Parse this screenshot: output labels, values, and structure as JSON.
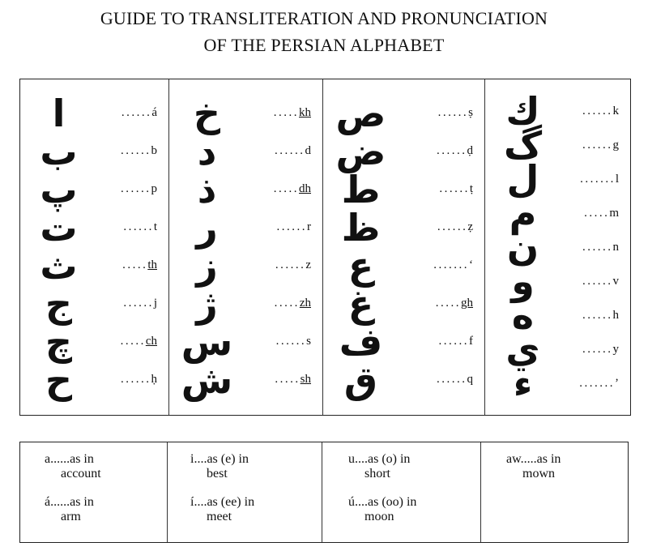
{
  "title": {
    "line1": "GUIDE TO TRANSLITERATION AND PRONUNCIATION",
    "line2": "OF THE PERSIAN ALPHABET"
  },
  "consonants": [
    [
      {
        "letter": "ا",
        "dots": "......",
        "translit": "á",
        "underline": false
      },
      {
        "letter": "ب",
        "dots": "......",
        "translit": "b",
        "underline": false
      },
      {
        "letter": "پ",
        "dots": "......",
        "translit": "p",
        "underline": false
      },
      {
        "letter": "ت",
        "dots": "......",
        "translit": "t",
        "underline": false
      },
      {
        "letter": "ث",
        "dots": ".....",
        "translit": "th",
        "underline": true
      },
      {
        "letter": "ج",
        "dots": "......",
        "translit": "j",
        "underline": false
      },
      {
        "letter": "چ",
        "dots": ".....",
        "translit": "ch",
        "underline": true
      },
      {
        "letter": "ح",
        "dots": "......",
        "translit": "ḥ",
        "underline": false
      }
    ],
    [
      {
        "letter": "خ",
        "dots": ".....",
        "translit": "kh",
        "underline": true
      },
      {
        "letter": "د",
        "dots": "......",
        "translit": "d",
        "underline": false
      },
      {
        "letter": "ذ",
        "dots": ".....",
        "translit": "dh",
        "underline": true
      },
      {
        "letter": "ر",
        "dots": "......",
        "translit": "r",
        "underline": false
      },
      {
        "letter": "ز",
        "dots": "......",
        "translit": "z",
        "underline": false
      },
      {
        "letter": "ژ",
        "dots": ".....",
        "translit": "zh",
        "underline": true
      },
      {
        "letter": "س",
        "dots": "......",
        "translit": "s",
        "underline": false
      },
      {
        "letter": "ش",
        "dots": ".....",
        "translit": "sh",
        "underline": true
      }
    ],
    [
      {
        "letter": "ص",
        "dots": "......",
        "translit": "ṣ",
        "underline": false
      },
      {
        "letter": "ض",
        "dots": "......",
        "translit": "ḍ",
        "underline": false
      },
      {
        "letter": "ط",
        "dots": "......",
        "translit": "ṭ",
        "underline": false
      },
      {
        "letter": "ظ",
        "dots": "......",
        "translit": "ẓ",
        "underline": false
      },
      {
        "letter": "ع",
        "dots": ".......",
        "translit": "‘",
        "underline": false
      },
      {
        "letter": "غ",
        "dots": ".....",
        "translit": "gh",
        "underline": true
      },
      {
        "letter": "ف",
        "dots": "......",
        "translit": "f",
        "underline": false
      },
      {
        "letter": "ق",
        "dots": "......",
        "translit": "q",
        "underline": false
      }
    ],
    [
      {
        "letter": "ك",
        "dots": "......",
        "translit": "k",
        "underline": false
      },
      {
        "letter": "گ",
        "dots": "......",
        "translit": "g",
        "underline": false
      },
      {
        "letter": "ل",
        "dots": ".......",
        "translit": "l",
        "underline": false
      },
      {
        "letter": "م",
        "dots": ".....",
        "translit": "m",
        "underline": false
      },
      {
        "letter": "ن",
        "dots": "......",
        "translit": "n",
        "underline": false
      },
      {
        "letter": "و",
        "dots": "......",
        "translit": "v",
        "underline": false
      },
      {
        "letter": "ه",
        "dots": "......",
        "translit": "h",
        "underline": false
      },
      {
        "letter": "ي",
        "dots": "......",
        "translit": "y",
        "underline": false
      },
      {
        "letter": "ء",
        "dots": ".......",
        "translit": "’",
        "underline": false
      }
    ]
  ],
  "vowels": [
    [
      {
        "line1": "a......as in",
        "line2": "account"
      },
      {
        "line1": "á......as in",
        "line2": "arm"
      }
    ],
    [
      {
        "line1": "i....as (e) in",
        "line2": "best"
      },
      {
        "line1": "í....as (ee) in",
        "line2": "meet"
      }
    ],
    [
      {
        "line1": "u....as (o) in",
        "line2": "short"
      },
      {
        "line1": "ú....as (oo) in",
        "line2": "moon"
      }
    ],
    [
      {
        "line1": "aw.....as in",
        "line2": "mown"
      }
    ]
  ]
}
